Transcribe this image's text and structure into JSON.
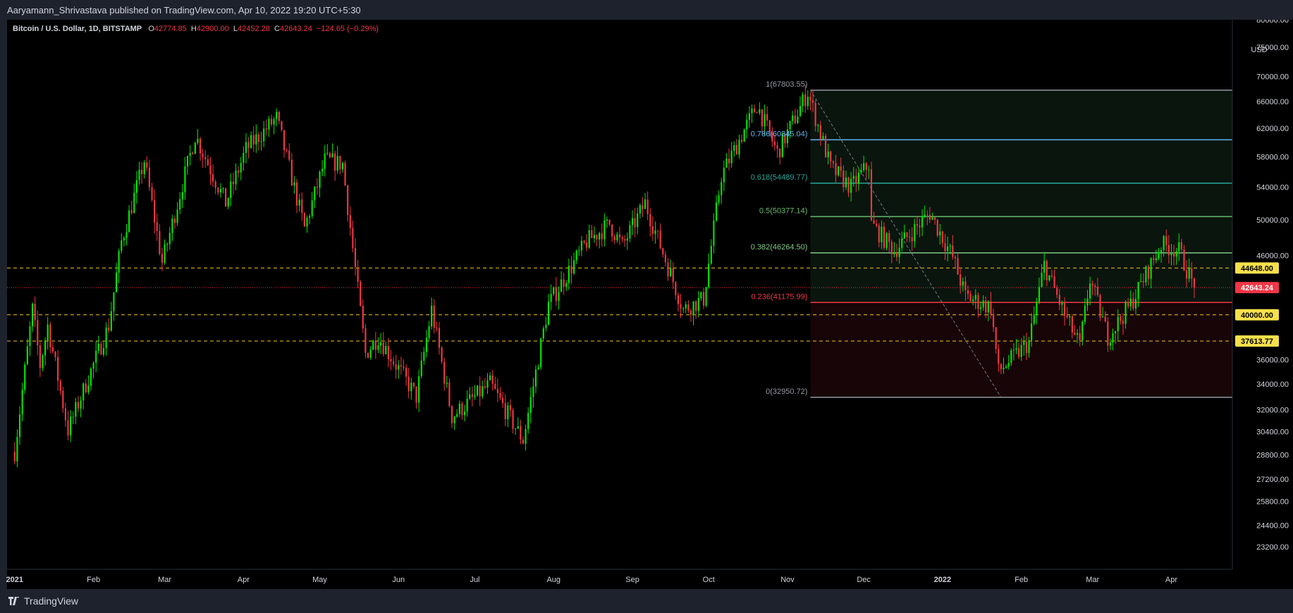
{
  "window": {
    "publisher_line": "Aaryamann_Shrivastava published on TradingView.com, Apr 10, 2022 19:20 UTC+5:30",
    "brand": "TradingView"
  },
  "header": {
    "symbol": "Bitcoin / U.S. Dollar, 1D, BITSTAMP",
    "open_label": "O",
    "open": "42774.85",
    "high_label": "H",
    "high": "42900.00",
    "low_label": "L",
    "low": "42452.28",
    "close_label": "C",
    "close": "42643.24",
    "change": "−124.65 (−0.29%)"
  },
  "colors": {
    "background": "#000000",
    "up": "#00e600",
    "down": "#f23645",
    "axis_bg": "#000000",
    "axis_text": "#d1d4dc",
    "hline": "#f5c518",
    "price_line": "#f23645"
  },
  "chart_data": {
    "type": "candlestick",
    "scale": "log",
    "currency": "USD",
    "ylim": [
      22000,
      80000
    ],
    "xlim": [
      "2020-12-29",
      "2022-04-25"
    ],
    "x_ticks": [
      {
        "label": "2021",
        "date": "2021-01-01",
        "bold": true
      },
      {
        "label": "Feb",
        "date": "2021-02-01"
      },
      {
        "label": "Mar",
        "date": "2021-03-01"
      },
      {
        "label": "Apr",
        "date": "2021-04-01"
      },
      {
        "label": "May",
        "date": "2021-05-01"
      },
      {
        "label": "Jun",
        "date": "2021-06-01"
      },
      {
        "label": "Jul",
        "date": "2021-07-01"
      },
      {
        "label": "Aug",
        "date": "2021-08-01"
      },
      {
        "label": "Sep",
        "date": "2021-09-01"
      },
      {
        "label": "Oct",
        "date": "2021-10-01"
      },
      {
        "label": "Nov",
        "date": "2021-11-01"
      },
      {
        "label": "Dec",
        "date": "2021-12-01"
      },
      {
        "label": "2022",
        "date": "2022-01-01",
        "bold": true
      },
      {
        "label": "Feb",
        "date": "2022-02-01"
      },
      {
        "label": "Mar",
        "date": "2022-03-01"
      },
      {
        "label": "Apr",
        "date": "2022-04-01"
      }
    ],
    "y_ticks": [
      {
        "label": "80000.00",
        "value": 80000
      },
      {
        "label": "75000.00",
        "value": 75000
      },
      {
        "label": "70000.00",
        "value": 70000
      },
      {
        "label": "66000.00",
        "value": 66000
      },
      {
        "label": "62000.00",
        "value": 62000
      },
      {
        "label": "58000.00",
        "value": 58000
      },
      {
        "label": "54000.00",
        "value": 54000
      },
      {
        "label": "50000.00",
        "value": 50000
      },
      {
        "label": "46000.00",
        "value": 46000
      },
      {
        "label": "36000.00",
        "value": 36000
      },
      {
        "label": "34000.00",
        "value": 34000
      },
      {
        "label": "32000.00",
        "value": 32000
      },
      {
        "label": "30400.00",
        "value": 30400
      },
      {
        "label": "28800.00",
        "value": 28800
      },
      {
        "label": "27200.00",
        "value": 27200
      },
      {
        "label": "25800.00",
        "value": 25800
      },
      {
        "label": "24400.00",
        "value": 24400
      },
      {
        "label": "23200.00",
        "value": 23200
      }
    ],
    "horizontal_lines": [
      {
        "value": 44648.0,
        "label": "44648.00",
        "style": "dashed"
      },
      {
        "value": 40000.0,
        "label": "40000.00",
        "style": "dashed"
      },
      {
        "value": 37613.77,
        "label": "37613.77",
        "style": "dashed"
      }
    ],
    "last_price": {
      "value": 42643.24,
      "label": "42643.24"
    },
    "fibonacci": {
      "start_date": "2021-11-10",
      "end_date": "2022-04-25",
      "trend_from": {
        "date": "2021-11-10",
        "value": 67803.55
      },
      "trend_to": {
        "date": "2022-01-24",
        "value": 32950.72
      },
      "levels": [
        {
          "label": "1(67803.55)",
          "value": 67803.55,
          "color": "#9598a1"
        },
        {
          "label": "0.786(60345.04)",
          "value": 60345.04,
          "color": "#64b5f6"
        },
        {
          "label": "0.618(54489.77)",
          "value": 54489.77,
          "color": "#26a69a"
        },
        {
          "label": "0.5(50377.14)",
          "value": 50377.14,
          "color": "#66bb6a"
        },
        {
          "label": "0.382(46264.50)",
          "value": 46264.5,
          "color": "#81c784"
        },
        {
          "label": "0.236(41175.99)",
          "value": 41175.99,
          "color": "#f23645"
        },
        {
          "label": "0(32950.72)",
          "value": 32950.72,
          "color": "#9598a1"
        }
      ]
    },
    "price_path": [
      [
        "2021-01-01",
        29000
      ],
      [
        "2021-01-08",
        40500
      ],
      [
        "2021-01-11",
        35500
      ],
      [
        "2021-01-14",
        39000
      ],
      [
        "2021-01-22",
        30500
      ],
      [
        "2021-01-29",
        34000
      ],
      [
        "2021-02-07",
        39000
      ],
      [
        "2021-02-12",
        47500
      ],
      [
        "2021-02-21",
        57500
      ],
      [
        "2021-02-28",
        45200
      ],
      [
        "2021-03-13",
        61000
      ],
      [
        "2021-03-25",
        52000
      ],
      [
        "2021-04-02",
        59000
      ],
      [
        "2021-04-14",
        63500
      ],
      [
        "2021-04-25",
        49000
      ],
      [
        "2021-05-03",
        57500
      ],
      [
        "2021-05-10",
        57000
      ],
      [
        "2021-05-19",
        36500
      ],
      [
        "2021-05-24",
        38000
      ],
      [
        "2021-06-08",
        33000
      ],
      [
        "2021-06-14",
        40500
      ],
      [
        "2021-06-22",
        31500
      ],
      [
        "2021-07-07",
        34000
      ],
      [
        "2021-07-20",
        29800
      ],
      [
        "2021-07-30",
        41000
      ],
      [
        "2021-08-14",
        47500
      ],
      [
        "2021-08-23",
        49500
      ],
      [
        "2021-08-28",
        47000
      ],
      [
        "2021-09-06",
        52000
      ],
      [
        "2021-09-21",
        40500
      ],
      [
        "2021-09-29",
        41500
      ],
      [
        "2021-10-06",
        55500
      ],
      [
        "2021-10-20",
        65500
      ],
      [
        "2021-10-28",
        58500
      ],
      [
        "2021-11-09",
        67500
      ],
      [
        "2021-11-18",
        56500
      ],
      [
        "2021-11-26",
        54000
      ],
      [
        "2021-12-03",
        57000
      ],
      [
        "2021-12-04",
        49500
      ],
      [
        "2021-12-13",
        46500
      ],
      [
        "2021-12-27",
        50800
      ],
      [
        "2022-01-05",
        45800
      ],
      [
        "2022-01-10",
        41800
      ],
      [
        "2022-01-20",
        40700
      ],
      [
        "2022-01-23",
        35000
      ],
      [
        "2022-02-04",
        37500
      ],
      [
        "2022-02-10",
        45000
      ],
      [
        "2022-02-18",
        40000
      ],
      [
        "2022-02-24",
        37200
      ],
      [
        "2022-02-28",
        43500
      ],
      [
        "2022-03-07",
        38000
      ],
      [
        "2022-03-16",
        41000
      ],
      [
        "2022-03-28",
        47200
      ],
      [
        "2022-04-04",
        46500
      ],
      [
        "2022-04-10",
        42643
      ]
    ]
  }
}
